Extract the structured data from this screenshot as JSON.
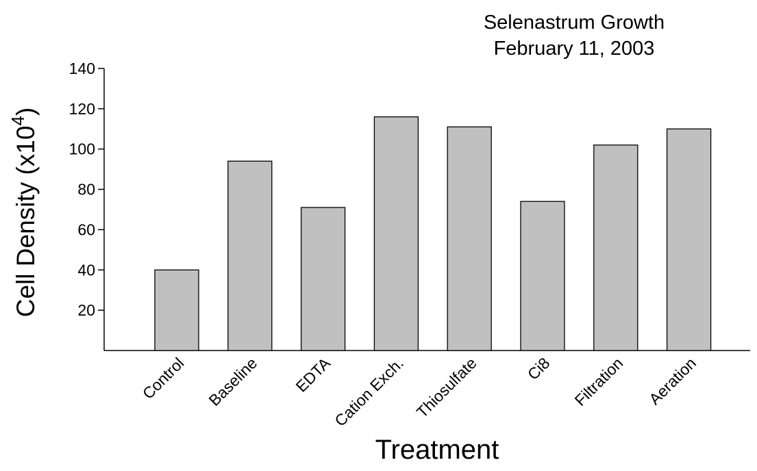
{
  "chart_data": {
    "type": "bar",
    "title_line1": "Selenastrum Growth",
    "title_line2": "February 11, 2003",
    "xlabel": "Treatment",
    "ylabel_main": "Cell Density (x10",
    "ylabel_exp": "4",
    "ylabel_close": ")",
    "categories": [
      "Control",
      "Baseline",
      "EDTA",
      "Cation Exch.",
      "Thiosulfate",
      "Ci8",
      "Filtration",
      "Aeration"
    ],
    "values": [
      40,
      94,
      71,
      116,
      111,
      74,
      102,
      110
    ],
    "ylim": [
      0,
      140
    ],
    "yticks": [
      20,
      40,
      60,
      80,
      100,
      120,
      140
    ],
    "grid": false,
    "bar_color": "#c0c0c0",
    "bar_edge_color": "#000000"
  }
}
